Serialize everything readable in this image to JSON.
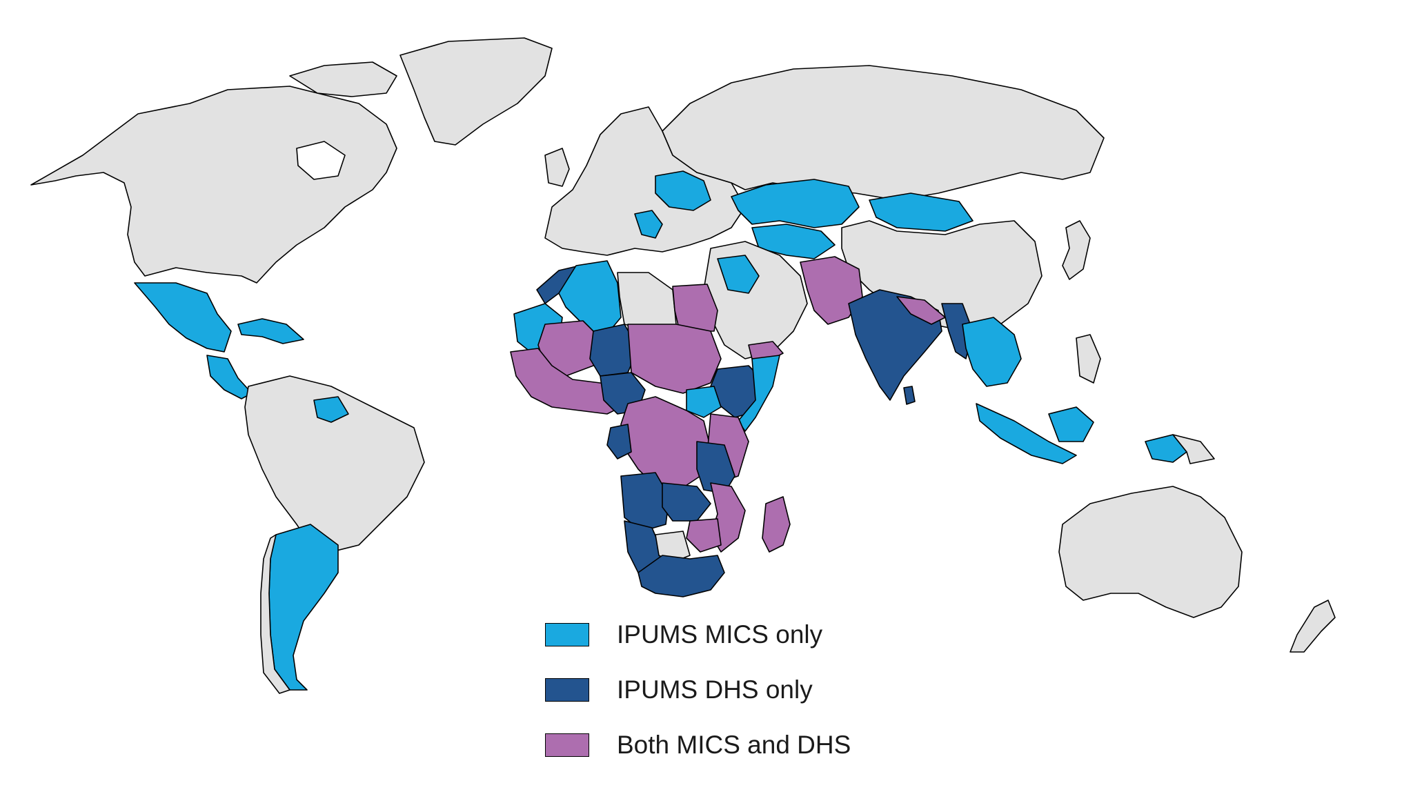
{
  "legend": {
    "items": [
      {
        "label": "IPUMS MICS only",
        "color": "#1aa9e0",
        "key": "mics"
      },
      {
        "label": "IPUMS DHS only",
        "color": "#23548f",
        "key": "dhs"
      },
      {
        "label": "Both MICS and DHS",
        "color": "#ad6eaf",
        "key": "both"
      }
    ]
  },
  "colors": {
    "no_data": "#e2e2e2",
    "mics_only": "#1aa9e0",
    "dhs_only": "#23548f",
    "both": "#ad6eaf",
    "border": "#000000",
    "background": "#ffffff"
  }
}
